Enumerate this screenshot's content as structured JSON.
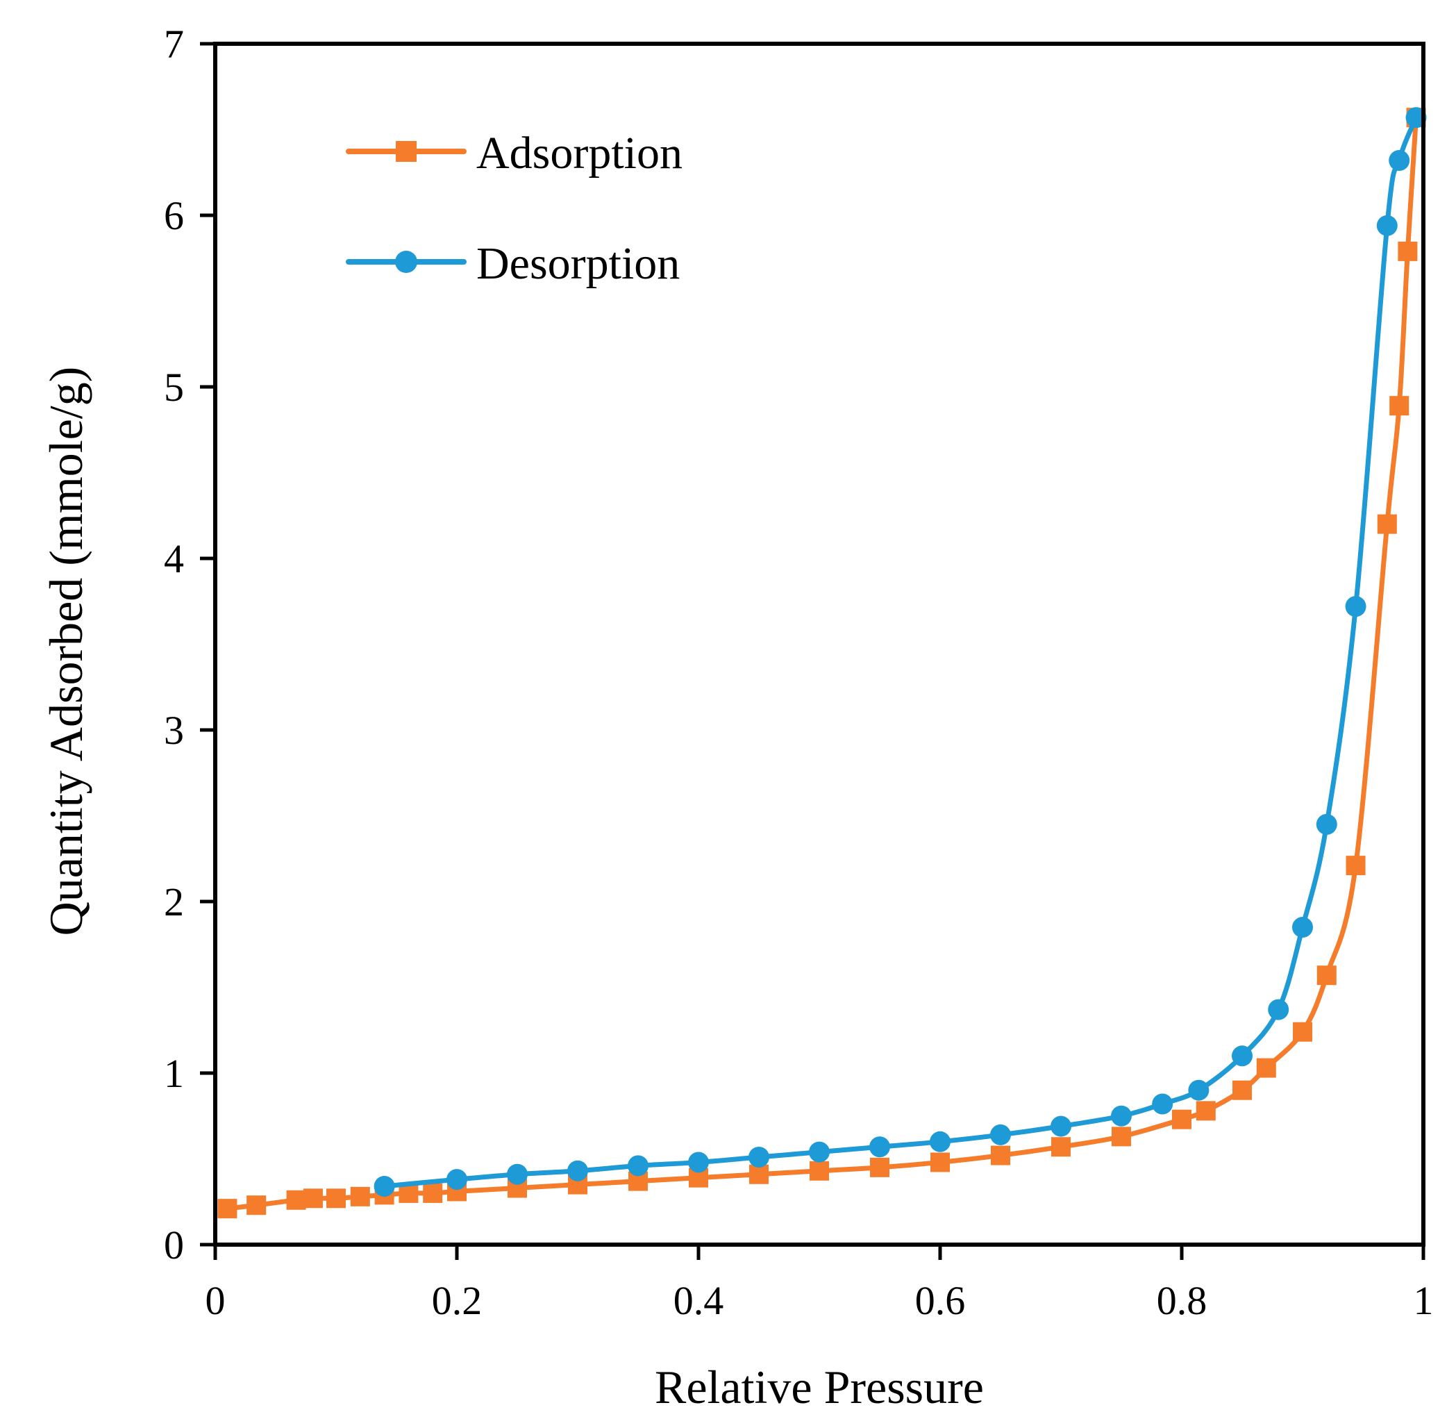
{
  "chart_data": {
    "type": "line",
    "title": "",
    "xlabel": "Relative Pressure",
    "ylabel": "Quantity Adsorbed (mmole/g)",
    "xlim": [
      0,
      1
    ],
    "ylim": [
      0,
      7
    ],
    "x_ticks": [
      "0",
      "0.2",
      "0.4",
      "0.6",
      "0.8",
      "1"
    ],
    "y_ticks": [
      "0",
      "1",
      "2",
      "3",
      "4",
      "5",
      "6",
      "7"
    ],
    "grid": false,
    "legend_position": "top-left",
    "series": [
      {
        "name": "Adsorption",
        "color": "#F47C2A",
        "marker": "square",
        "x": [
          0.01,
          0.034,
          0.067,
          0.081,
          0.1,
          0.12,
          0.14,
          0.16,
          0.18,
          0.2,
          0.25,
          0.3,
          0.35,
          0.4,
          0.45,
          0.5,
          0.55,
          0.6,
          0.65,
          0.7,
          0.75,
          0.8,
          0.82,
          0.85,
          0.87,
          0.9,
          0.92,
          0.944,
          0.97,
          0.98,
          0.987,
          0.994
        ],
        "y": [
          0.21,
          0.23,
          0.26,
          0.27,
          0.27,
          0.28,
          0.29,
          0.3,
          0.3,
          0.31,
          0.33,
          0.35,
          0.37,
          0.39,
          0.41,
          0.43,
          0.45,
          0.48,
          0.52,
          0.57,
          0.63,
          0.73,
          0.78,
          0.9,
          1.03,
          1.24,
          1.57,
          2.21,
          4.2,
          4.89,
          5.79,
          6.57
        ]
      },
      {
        "name": "Desorption",
        "color": "#1E9AD6",
        "marker": "circle",
        "x": [
          0.14,
          0.2,
          0.25,
          0.3,
          0.35,
          0.4,
          0.45,
          0.5,
          0.55,
          0.6,
          0.65,
          0.7,
          0.75,
          0.784,
          0.814,
          0.85,
          0.88,
          0.9,
          0.92,
          0.944,
          0.97,
          0.98,
          0.994
        ],
        "y": [
          0.34,
          0.38,
          0.41,
          0.43,
          0.46,
          0.48,
          0.51,
          0.54,
          0.57,
          0.6,
          0.64,
          0.69,
          0.75,
          0.82,
          0.9,
          1.1,
          1.37,
          1.85,
          2.45,
          3.72,
          5.94,
          6.32,
          6.57
        ]
      }
    ]
  }
}
